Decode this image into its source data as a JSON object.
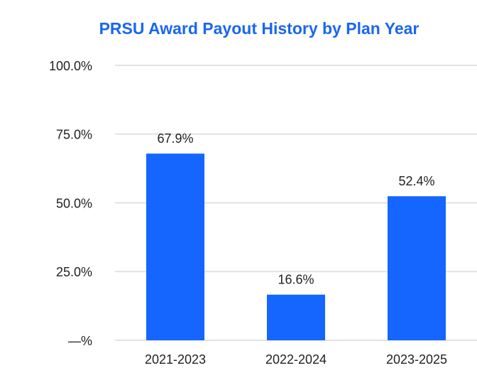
{
  "chart_data": {
    "type": "bar",
    "title": "PRSU Award Payout History by Plan Year",
    "categories": [
      "2021-2023",
      "2022-2024",
      "2023-2025"
    ],
    "values": [
      67.9,
      16.6,
      52.4
    ],
    "value_labels": [
      "67.9%",
      "16.6%",
      "52.4%"
    ],
    "color": "#1466ff",
    "ylim": [
      0,
      100
    ],
    "yticks": [
      {
        "value": 0,
        "label": "—%"
      },
      {
        "value": 25,
        "label": "25.0%"
      },
      {
        "value": 50,
        "label": "50.0%"
      },
      {
        "value": 75,
        "label": "75.0%"
      },
      {
        "value": 100,
        "label": "100.0%"
      }
    ],
    "grid": true
  }
}
